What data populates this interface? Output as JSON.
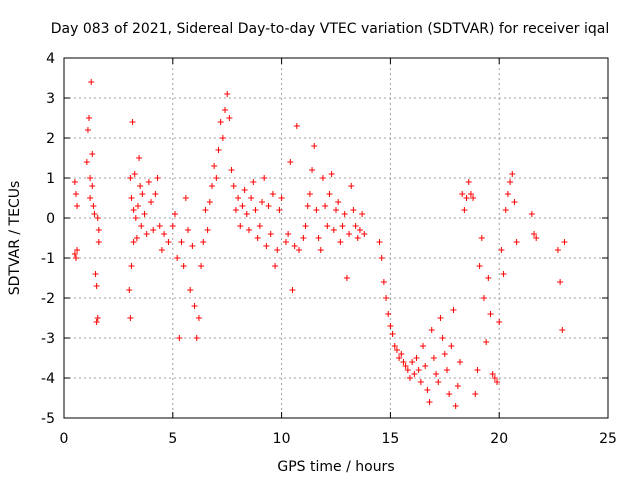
{
  "chart_data": {
    "type": "scatter",
    "title": "Day 083 of 2021, Sidereal Day-to-day VTEC variation (SDTVAR) for receiver iqal",
    "xlabel": "GPS time / hours",
    "ylabel": "SDTVAR / TECUs",
    "xlim": [
      0,
      25
    ],
    "ylim": [
      -5,
      4
    ],
    "xticks": [
      0,
      5,
      10,
      15,
      20,
      25
    ],
    "yticks": [
      -5,
      -4,
      -3,
      -2,
      -1,
      0,
      1,
      2,
      3,
      4
    ],
    "xtick_labels": [
      "0",
      "5",
      "10",
      "15",
      "20",
      "25"
    ],
    "ytick_labels": [
      "-5",
      "-4",
      "-3",
      "-2",
      "-1",
      "0",
      "1",
      "2",
      "3",
      "4"
    ],
    "grid": true,
    "marker": "+",
    "color": "#ff0000",
    "series": [
      {
        "name": "SDTVAR",
        "x": [
          0.5,
          0.5,
          0.55,
          0.55,
          0.6,
          0.6,
          1.05,
          1.1,
          1.15,
          1.2,
          1.2,
          1.25,
          1.3,
          1.3,
          1.35,
          1.4,
          1.45,
          1.5,
          1.5,
          1.55,
          1.55,
          1.6,
          1.6,
          3.0,
          3.05,
          3.05,
          3.1,
          3.1,
          3.15,
          3.2,
          3.2,
          3.25,
          3.3,
          3.35,
          3.4,
          3.45,
          3.5,
          3.55,
          3.6,
          3.7,
          3.8,
          3.9,
          4.0,
          4.1,
          4.2,
          4.3,
          4.4,
          4.5,
          4.6,
          4.8,
          5.0,
          5.1,
          5.2,
          5.3,
          5.4,
          5.5,
          5.6,
          5.7,
          5.8,
          5.9,
          6.0,
          6.1,
          6.2,
          6.3,
          6.4,
          6.5,
          6.6,
          6.7,
          6.8,
          6.9,
          7.0,
          7.1,
          7.2,
          7.3,
          7.4,
          7.5,
          7.6,
          7.7,
          7.8,
          7.9,
          8.0,
          8.1,
          8.2,
          8.3,
          8.4,
          8.5,
          8.6,
          8.7,
          8.8,
          8.9,
          9.0,
          9.1,
          9.2,
          9.3,
          9.4,
          9.5,
          9.6,
          9.7,
          9.8,
          9.9,
          10.0,
          10.2,
          10.3,
          10.4,
          10.5,
          10.6,
          10.7,
          10.8,
          11.0,
          11.1,
          11.2,
          11.3,
          11.4,
          11.5,
          11.6,
          11.7,
          11.8,
          11.9,
          12.0,
          12.1,
          12.2,
          12.3,
          12.4,
          12.5,
          12.6,
          12.7,
          12.8,
          12.9,
          13.0,
          13.1,
          13.2,
          13.3,
          13.4,
          13.5,
          13.6,
          13.7,
          13.8,
          14.5,
          14.6,
          14.7,
          14.8,
          14.9,
          15.0,
          15.1,
          15.2,
          15.3,
          15.4,
          15.5,
          15.6,
          15.7,
          15.8,
          15.9,
          16.0,
          16.1,
          16.2,
          16.3,
          16.4,
          16.5,
          16.6,
          16.7,
          16.8,
          16.9,
          17.0,
          17.1,
          17.2,
          17.3,
          17.4,
          17.5,
          17.6,
          17.7,
          17.8,
          17.9,
          18.0,
          18.1,
          18.2,
          18.3,
          18.4,
          18.5,
          18.6,
          18.7,
          18.8,
          18.9,
          19.0,
          19.1,
          19.2,
          19.3,
          19.4,
          19.5,
          19.6,
          19.7,
          19.8,
          19.9,
          20.0,
          20.1,
          20.2,
          20.3,
          20.4,
          20.5,
          20.6,
          20.7,
          20.8,
          21.5,
          21.6,
          21.7,
          22.7,
          22.8,
          22.9,
          23.0
        ],
        "y": [
          0.9,
          -0.9,
          0.6,
          -1.0,
          0.3,
          -0.8,
          1.4,
          2.2,
          2.5,
          1.0,
          0.5,
          3.4,
          0.8,
          1.6,
          0.3,
          0.1,
          -1.4,
          -2.6,
          -1.7,
          -2.5,
          0.0,
          -0.3,
          -0.6,
          -1.8,
          -2.5,
          1.0,
          -1.2,
          0.5,
          2.4,
          -0.6,
          0.2,
          1.1,
          0.0,
          -0.5,
          0.3,
          1.5,
          0.8,
          -0.2,
          0.6,
          0.1,
          -0.4,
          0.9,
          0.4,
          -0.3,
          0.6,
          1.0,
          -0.2,
          -0.8,
          -0.4,
          -0.6,
          -0.2,
          0.1,
          -1.0,
          -3.0,
          -0.6,
          -1.2,
          0.5,
          -0.3,
          -1.8,
          -0.7,
          -2.2,
          -3.0,
          -2.5,
          -1.2,
          -0.6,
          0.2,
          -0.3,
          0.4,
          0.8,
          1.3,
          1.0,
          1.7,
          2.4,
          2.0,
          2.7,
          3.1,
          2.5,
          1.2,
          0.8,
          0.2,
          0.5,
          -0.2,
          0.3,
          0.7,
          0.1,
          -0.3,
          0.5,
          0.9,
          0.2,
          -0.5,
          -0.2,
          0.4,
          1.0,
          -0.7,
          0.3,
          -0.4,
          0.6,
          -1.2,
          -0.8,
          0.2,
          0.5,
          -0.6,
          -0.4,
          1.4,
          -1.8,
          -0.7,
          2.3,
          -0.8,
          -0.5,
          -0.2,
          0.3,
          0.6,
          1.2,
          1.8,
          0.2,
          -0.5,
          -0.8,
          1.0,
          0.3,
          -0.2,
          0.6,
          1.1,
          -0.3,
          0.2,
          0.4,
          -0.6,
          -0.2,
          0.1,
          -1.5,
          -0.4,
          0.8,
          0.2,
          -0.2,
          -0.5,
          -0.3,
          0.1,
          -0.4,
          -0.6,
          -1.0,
          -1.6,
          -2.0,
          -2.4,
          -2.7,
          -2.9,
          -3.2,
          -3.3,
          -3.5,
          -3.4,
          -3.6,
          -3.7,
          -3.8,
          -4.0,
          -3.6,
          -3.9,
          -3.5,
          -3.8,
          -4.1,
          -3.2,
          -3.7,
          -4.3,
          -4.6,
          -2.8,
          -3.5,
          -3.9,
          -4.1,
          -2.5,
          -3.0,
          -3.4,
          -3.8,
          -4.4,
          -3.2,
          -2.3,
          -4.7,
          -4.2,
          -3.6,
          0.6,
          0.2,
          0.5,
          0.9,
          0.6,
          0.5,
          -4.4,
          -3.8,
          -1.2,
          -0.5,
          -2.0,
          -3.1,
          -1.5,
          -2.4,
          -3.9,
          -4.0,
          -4.1,
          -2.6,
          -0.8,
          -1.4,
          0.2,
          0.6,
          0.9,
          1.1,
          0.4,
          -0.6,
          0.1,
          -0.4,
          -0.5,
          -0.8,
          -1.6,
          -2.8,
          -0.6
        ]
      }
    ]
  }
}
